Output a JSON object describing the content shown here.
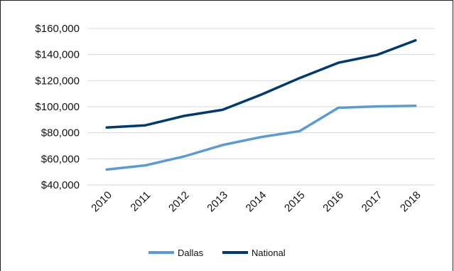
{
  "chart_data": {
    "type": "line",
    "title": "",
    "xlabel": "",
    "ylabel": "",
    "x": [
      "2010",
      "2011",
      "2012",
      "2013",
      "2014",
      "2015",
      "2016",
      "2017",
      "2018"
    ],
    "ylim": [
      40000,
      160000
    ],
    "yticks": [
      40000,
      60000,
      80000,
      100000,
      120000,
      140000,
      160000
    ],
    "ytick_labels": [
      "$40,000",
      "$60,000",
      "$80,000",
      "$100,000",
      "$120,000",
      "$140,000",
      "$160,000"
    ],
    "grid": true,
    "legend_position": "bottom",
    "series": [
      {
        "name": "Dallas",
        "color": "#5b9bd5",
        "values": [
          51800,
          55000,
          61800,
          70600,
          76700,
          81300,
          99200,
          100200,
          100700
        ]
      },
      {
        "name": "National",
        "color": "#003a70",
        "values": [
          84100,
          85700,
          92900,
          97600,
          109200,
          122000,
          133700,
          139700,
          150900
        ]
      }
    ]
  }
}
